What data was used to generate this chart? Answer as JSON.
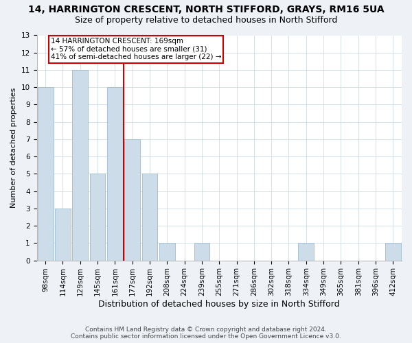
{
  "title": "14, HARRINGTON CRESCENT, NORTH STIFFORD, GRAYS, RM16 5UA",
  "subtitle": "Size of property relative to detached houses in North Stifford",
  "xlabel": "Distribution of detached houses by size in North Stifford",
  "ylabel": "Number of detached properties",
  "footer_line1": "Contains HM Land Registry data © Crown copyright and database right 2024.",
  "footer_line2": "Contains public sector information licensed under the Open Government Licence v3.0.",
  "categories": [
    "98sqm",
    "114sqm",
    "129sqm",
    "145sqm",
    "161sqm",
    "177sqm",
    "192sqm",
    "208sqm",
    "224sqm",
    "239sqm",
    "255sqm",
    "271sqm",
    "286sqm",
    "302sqm",
    "318sqm",
    "334sqm",
    "349sqm",
    "365sqm",
    "381sqm",
    "396sqm",
    "412sqm"
  ],
  "values": [
    10,
    3,
    11,
    5,
    10,
    7,
    5,
    1,
    0,
    1,
    0,
    0,
    0,
    0,
    0,
    1,
    0,
    0,
    0,
    0,
    1
  ],
  "bar_color": "#ccdce8",
  "bar_edge_color": "#a0bdd0",
  "vline_x": 4.5,
  "vline_color": "#cc0000",
  "annotation_box_text": "14 HARRINGTON CRESCENT: 169sqm\n← 57% of detached houses are smaller (31)\n41% of semi-detached houses are larger (22) →",
  "annotation_box_color": "#cc0000",
  "annotation_text_size": 7.5,
  "ylim": [
    0,
    13
  ],
  "yticks": [
    0,
    1,
    2,
    3,
    4,
    5,
    6,
    7,
    8,
    9,
    10,
    11,
    12,
    13
  ],
  "title_fontsize": 10,
  "subtitle_fontsize": 9,
  "xlabel_fontsize": 9,
  "ylabel_fontsize": 8,
  "tick_fontsize": 7.5,
  "footer_fontsize": 6.5,
  "background_color": "#eef2f7",
  "plot_bg_color": "#ffffff"
}
